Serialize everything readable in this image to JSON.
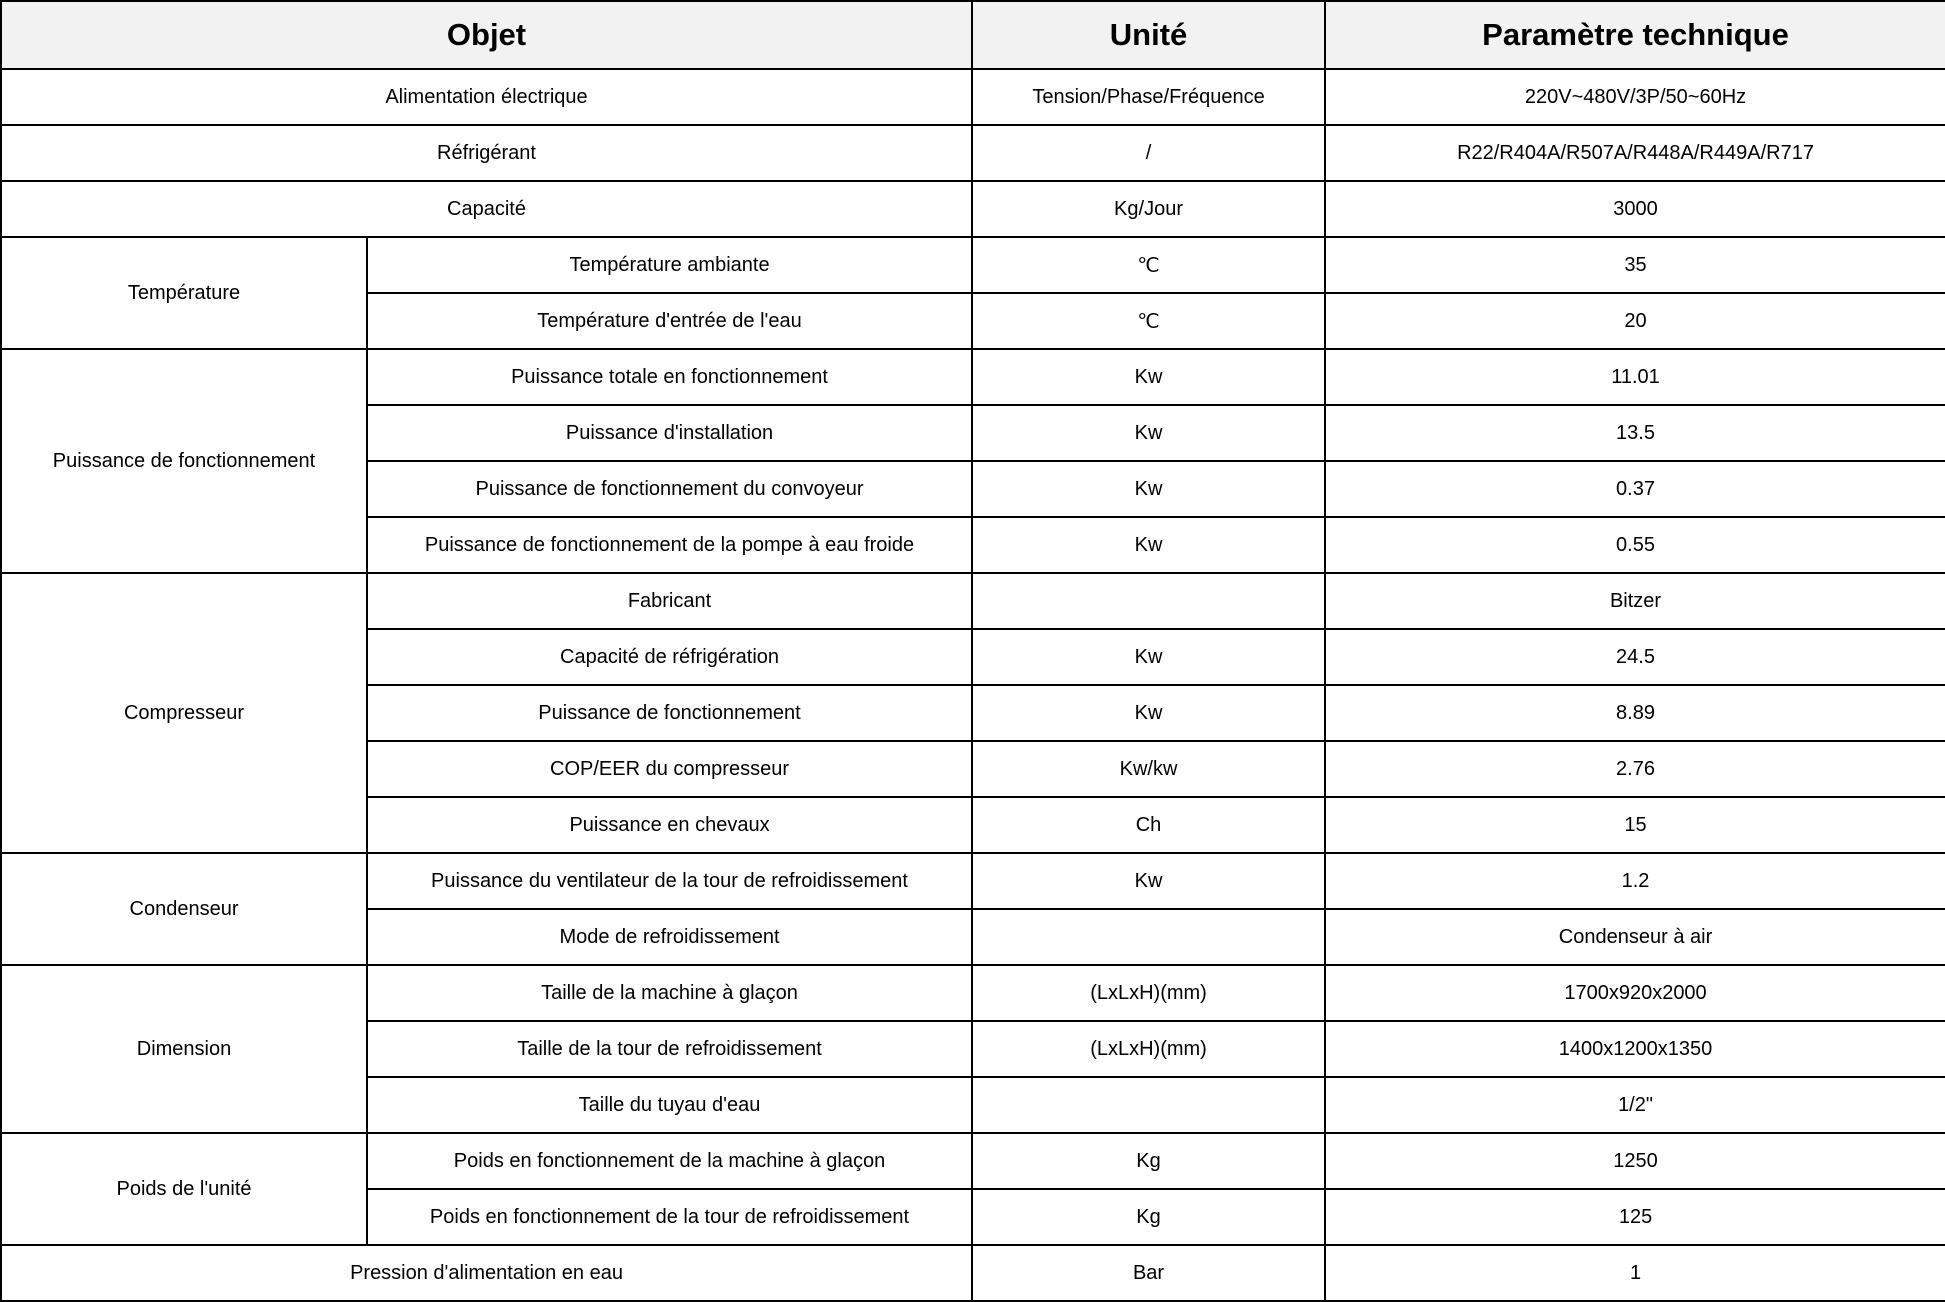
{
  "header": {
    "objet": "Objet",
    "unite": "Unité",
    "parametre": "Paramètre technique"
  },
  "single_top": [
    {
      "label": "Alimentation électrique",
      "unit": "Tension/Phase/Fréquence",
      "value": "220V~480V/3P/50~60Hz"
    },
    {
      "label": "Réfrigérant",
      "unit": "/",
      "value": "R22/R404A/R507A/R448A/R449A/R717"
    },
    {
      "label": "Capacité",
      "unit": "Kg/Jour",
      "value": "3000"
    }
  ],
  "groups": [
    {
      "label": "Température",
      "rows": [
        {
          "label": "Température ambiante",
          "unit": "℃",
          "value": "35"
        },
        {
          "label": "Température d'entrée de l'eau",
          "unit": "℃",
          "value": "20"
        }
      ]
    },
    {
      "label": "Puissance de fonctionnement",
      "rows": [
        {
          "label": "Puissance totale en fonctionnement",
          "unit": "Kw",
          "value": "11.01"
        },
        {
          "label": "Puissance d'installation",
          "unit": "Kw",
          "value": "13.5"
        },
        {
          "label": "Puissance de fonctionnement du convoyeur",
          "unit": "Kw",
          "value": "0.37"
        },
        {
          "label": "Puissance de fonctionnement de la pompe à eau froide",
          "unit": "Kw",
          "value": "0.55"
        }
      ]
    },
    {
      "label": "Compresseur",
      "rows": [
        {
          "label": "Fabricant",
          "unit": "",
          "value": "Bitzer"
        },
        {
          "label": "Capacité de réfrigération",
          "unit": "Kw",
          "value": "24.5"
        },
        {
          "label": "Puissance de fonctionnement",
          "unit": "Kw",
          "value": "8.89"
        },
        {
          "label": "COP/EER du compresseur",
          "unit": "Kw/kw",
          "value": "2.76"
        },
        {
          "label": "Puissance en chevaux",
          "unit": "Ch",
          "value": "15"
        }
      ]
    },
    {
      "label": "Condenseur",
      "rows": [
        {
          "label": "Puissance du ventilateur de la tour de refroidissement",
          "unit": "Kw",
          "value": "1.2"
        },
        {
          "label": "Mode de refroidissement",
          "unit": "",
          "value": "Condenseur à air"
        }
      ]
    },
    {
      "label": "Dimension",
      "rows": [
        {
          "label": "Taille de la machine à glaçon",
          "unit": "(LxLxH)(mm)",
          "value": "1700x920x2000"
        },
        {
          "label": "Taille de la tour de refroidissement",
          "unit": "(LxLxH)(mm)",
          "value": "1400x1200x1350"
        },
        {
          "label": "Taille du tuyau d'eau",
          "unit": "",
          "value": "1/2\""
        }
      ]
    },
    {
      "label": "Poids de l'unité",
      "rows": [
        {
          "label": "Poids en fonctionnement de la machine à glaçon",
          "unit": "Kg",
          "value": "1250"
        },
        {
          "label": "Poids en fonctionnement de la tour de refroidissement",
          "unit": "Kg",
          "value": "125"
        }
      ]
    }
  ],
  "single_bottom": [
    {
      "label": "Pression d'alimentation en eau",
      "unit": "Bar",
      "value": "1"
    }
  ]
}
